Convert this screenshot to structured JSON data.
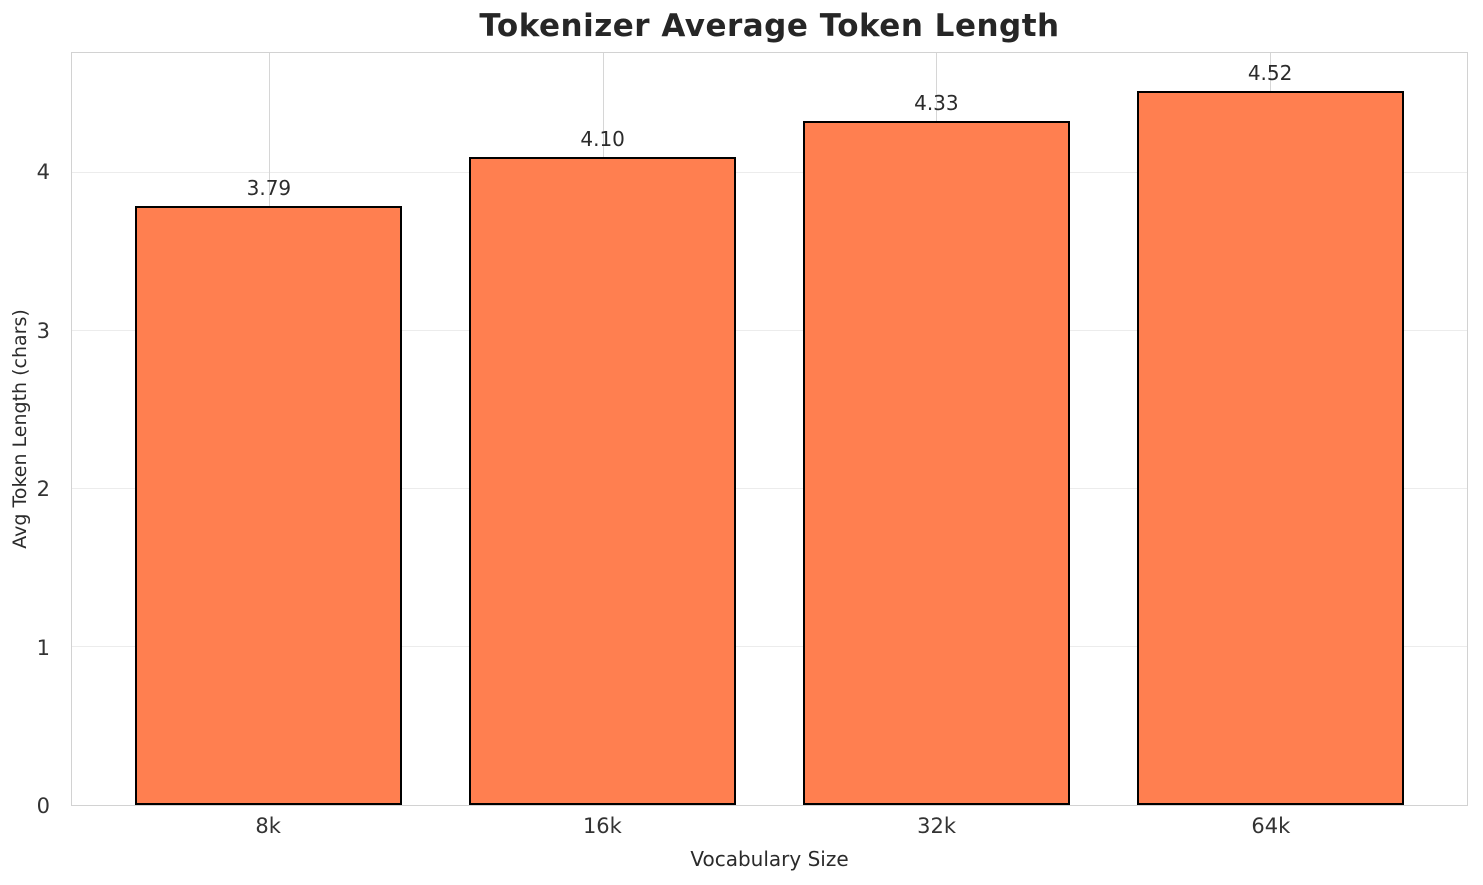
{
  "chart_data": {
    "type": "bar",
    "title": "Tokenizer Average Token Length",
    "xlabel": "Vocabulary Size",
    "ylabel": "Avg Token Length (chars)",
    "categories": [
      "8k",
      "16k",
      "32k",
      "64k"
    ],
    "values": [
      3.79,
      4.1,
      4.33,
      4.52
    ],
    "value_labels": [
      "3.79",
      "4.10",
      "4.33",
      "4.52"
    ],
    "yticks": [
      0,
      1,
      2,
      3,
      4
    ],
    "ylim": [
      0,
      4.76
    ],
    "grid": true,
    "legend": "none",
    "bar_color": "#FF7F50",
    "bar_edge_color": "#000000",
    "background_color": "#ffffff"
  }
}
